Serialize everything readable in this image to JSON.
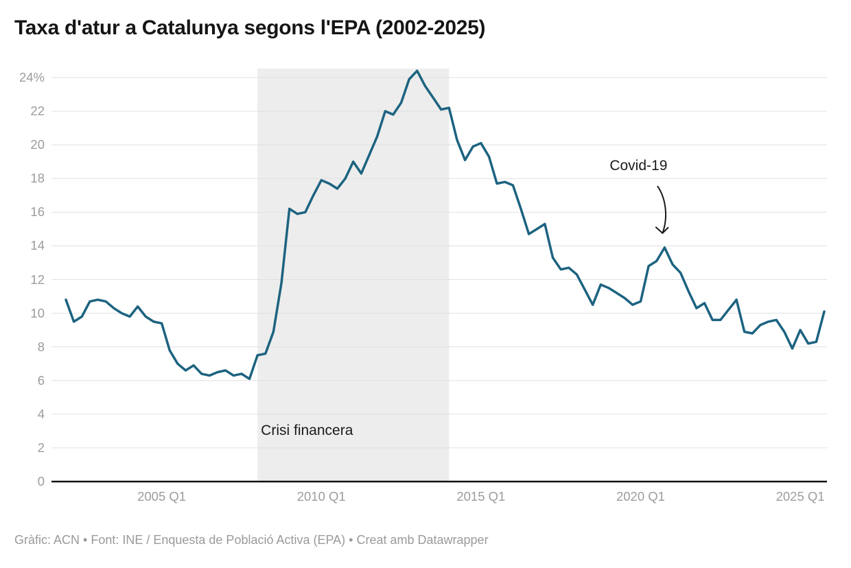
{
  "title": "Taxa d'atur a Catalunya segons l'EPA (2002-2025)",
  "footer": {
    "text": "Gràfic: ACN • Font: INE / Enquesta de Població Activa (EPA) • Creat amb Datawrapper"
  },
  "chart_data": {
    "type": "line",
    "title": "Taxa d'atur a Catalunya segons l'EPA (2002-2025)",
    "unit": "%",
    "line_color": "#1c6380",
    "grid_color": "#e0e0e0",
    "axis_color": "#111111",
    "band_color": "#ededed",
    "tick_text_color": "#9c9c9c",
    "ylim": [
      0,
      24.6
    ],
    "grid": "on",
    "y_ticks": [
      0,
      2,
      4,
      6,
      8,
      10,
      12,
      14,
      16,
      18,
      20,
      22,
      24
    ],
    "y_tick_labels": [
      "0",
      "2",
      "4",
      "6",
      "8",
      "10",
      "12",
      "14",
      "16",
      "18",
      "20",
      "22",
      "24%"
    ],
    "x_tick_labels": [
      "2005 Q1",
      "2010 Q1",
      "2015 Q1",
      "2020 Q1",
      "2025 Q1"
    ],
    "x_tick_indices": [
      12,
      32,
      52,
      72,
      92
    ],
    "quarters": [
      "2002 Q1",
      "2002 Q2",
      "2002 Q3",
      "2002 Q4",
      "2003 Q1",
      "2003 Q2",
      "2003 Q3",
      "2003 Q4",
      "2004 Q1",
      "2004 Q2",
      "2004 Q3",
      "2004 Q4",
      "2005 Q1",
      "2005 Q2",
      "2005 Q3",
      "2005 Q4",
      "2006 Q1",
      "2006 Q2",
      "2006 Q3",
      "2006 Q4",
      "2007 Q1",
      "2007 Q2",
      "2007 Q3",
      "2007 Q4",
      "2008 Q1",
      "2008 Q2",
      "2008 Q3",
      "2008 Q4",
      "2009 Q1",
      "2009 Q2",
      "2009 Q3",
      "2009 Q4",
      "2010 Q1",
      "2010 Q2",
      "2010 Q3",
      "2010 Q4",
      "2011 Q1",
      "2011 Q2",
      "2011 Q3",
      "2011 Q4",
      "2012 Q1",
      "2012 Q2",
      "2012 Q3",
      "2012 Q4",
      "2013 Q1",
      "2013 Q2",
      "2013 Q3",
      "2013 Q4",
      "2014 Q1",
      "2014 Q2",
      "2014 Q3",
      "2014 Q4",
      "2015 Q1",
      "2015 Q2",
      "2015 Q3",
      "2015 Q4",
      "2016 Q1",
      "2016 Q2",
      "2016 Q3",
      "2016 Q4",
      "2017 Q1",
      "2017 Q2",
      "2017 Q3",
      "2017 Q4",
      "2018 Q1",
      "2018 Q2",
      "2018 Q3",
      "2018 Q4",
      "2019 Q1",
      "2019 Q2",
      "2019 Q3",
      "2019 Q4",
      "2020 Q1",
      "2020 Q2",
      "2020 Q3",
      "2020 Q4",
      "2021 Q1",
      "2021 Q2",
      "2021 Q3",
      "2021 Q4",
      "2022 Q1",
      "2022 Q2",
      "2022 Q3",
      "2022 Q4",
      "2023 Q1",
      "2023 Q2",
      "2023 Q3",
      "2023 Q4",
      "2024 Q1",
      "2024 Q2",
      "2024 Q3",
      "2024 Q4",
      "2025 Q1",
      "2025 Q2",
      "2025 Q3",
      "2025 Q4"
    ],
    "values": [
      10.8,
      9.5,
      9.8,
      10.7,
      10.8,
      10.7,
      10.3,
      10.0,
      9.8,
      10.4,
      9.8,
      9.5,
      9.4,
      7.8,
      7.0,
      6.6,
      6.9,
      6.4,
      6.3,
      6.5,
      6.6,
      6.3,
      6.4,
      6.1,
      7.5,
      7.6,
      8.9,
      11.8,
      16.2,
      15.9,
      16.0,
      17.0,
      17.9,
      17.7,
      17.4,
      18.0,
      19.0,
      18.3,
      19.4,
      20.5,
      22.0,
      21.8,
      22.5,
      23.9,
      24.4,
      23.5,
      22.8,
      22.1,
      22.2,
      20.3,
      19.1,
      19.9,
      20.1,
      19.3,
      17.7,
      17.8,
      17.6,
      16.2,
      14.7,
      15.0,
      15.3,
      13.3,
      12.6,
      12.7,
      12.3,
      11.4,
      10.5,
      11.7,
      11.5,
      11.2,
      10.9,
      10.5,
      10.7,
      12.8,
      13.1,
      13.9,
      12.9,
      12.4,
      11.3,
      10.3,
      10.6,
      9.6,
      9.6,
      10.2,
      10.8,
      8.9,
      8.8,
      9.3,
      9.5,
      9.6,
      8.9,
      7.9,
      9.0,
      8.2,
      8.3,
      10.1
    ],
    "annotations": {
      "band": {
        "label": "Crisi financera",
        "from": "2008 Q1",
        "to": "2014 Q1",
        "from_index": 24,
        "to_index": 48
      },
      "covid": {
        "label": "Covid-19",
        "at": "2020 Q4",
        "index": 75,
        "value": 13.9
      }
    }
  }
}
